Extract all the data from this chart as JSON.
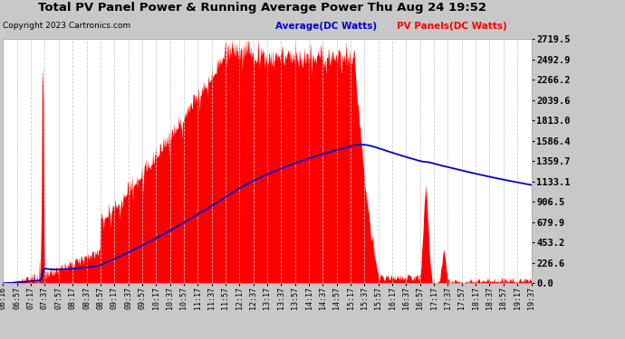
{
  "title": "Total PV Panel Power & Running Average Power Thu Aug 24 19:52",
  "copyright": "Copyright 2023 Cartronics.com",
  "legend_avg": "Average(DC Watts)",
  "legend_pv": "PV Panels(DC Watts)",
  "ylabel_right_ticks": [
    0.0,
    226.6,
    453.2,
    679.9,
    906.5,
    1133.1,
    1359.7,
    1586.4,
    1813.0,
    2039.6,
    2266.2,
    2492.9,
    2719.5
  ],
  "fig_bg_color": "#c8c8c8",
  "plot_bg_color": "#ffffff",
  "pv_color": "#ff0000",
  "avg_color": "#0000cc",
  "grid_color": "#cccccc",
  "title_color": "#000000",
  "copyright_color": "#000000",
  "avg_legend_color": "#0000cc",
  "pv_legend_color": "#ff0000",
  "ylim": [
    0,
    2719.5
  ],
  "x_tick_labels": [
    "06:16",
    "06:57",
    "07:17",
    "07:37",
    "07:57",
    "08:17",
    "08:37",
    "08:57",
    "09:17",
    "09:37",
    "09:57",
    "10:17",
    "10:37",
    "10:57",
    "11:17",
    "11:37",
    "11:57",
    "12:17",
    "12:37",
    "13:17",
    "13:37",
    "13:57",
    "14:17",
    "14:37",
    "14:57",
    "15:17",
    "15:37",
    "15:57",
    "16:17",
    "16:37",
    "16:57",
    "17:17",
    "17:37",
    "17:57",
    "18:17",
    "18:37",
    "18:57",
    "19:17",
    "19:37"
  ]
}
